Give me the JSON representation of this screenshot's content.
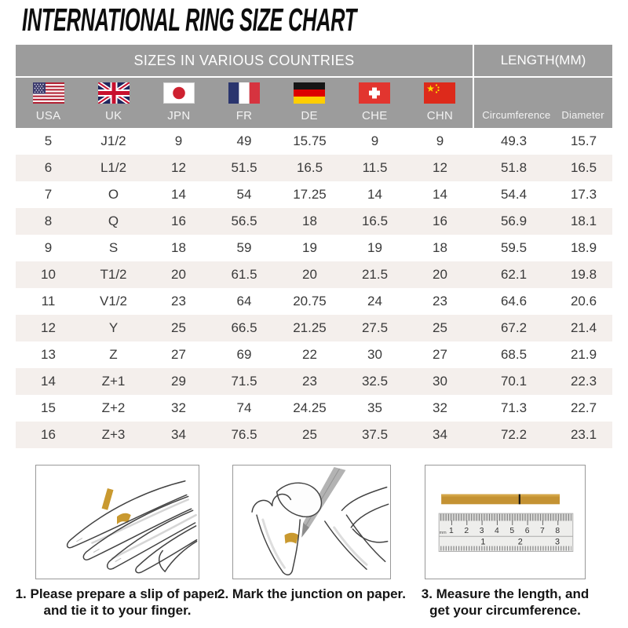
{
  "title": "INTERNATIONAL RING SIZE CHART",
  "table": {
    "group_headers": [
      {
        "label": "SIZES IN VARIOUS COUNTRIES"
      },
      {
        "label": "LENGTH(MM)"
      }
    ],
    "columns": [
      {
        "code": "USA",
        "flag": "usa-flag"
      },
      {
        "code": "UK",
        "flag": "uk-flag"
      },
      {
        "code": "JPN",
        "flag": "japan-flag"
      },
      {
        "code": "FR",
        "flag": "france-flag"
      },
      {
        "code": "DE",
        "flag": "germany-flag"
      },
      {
        "code": "CHE",
        "flag": "switzerland-flag"
      },
      {
        "code": "CHN",
        "flag": "china-flag"
      }
    ],
    "length_columns": [
      "Circumference",
      "Diameter"
    ],
    "rows": [
      [
        "5",
        "J1/2",
        "9",
        "49",
        "15.75",
        "9",
        "9",
        "49.3",
        "15.7"
      ],
      [
        "6",
        "L1/2",
        "12",
        "51.5",
        "16.5",
        "11.5",
        "12",
        "51.8",
        "16.5"
      ],
      [
        "7",
        "O",
        "14",
        "54",
        "17.25",
        "14",
        "14",
        "54.4",
        "17.3"
      ],
      [
        "8",
        "Q",
        "16",
        "56.5",
        "18",
        "16.5",
        "16",
        "56.9",
        "18.1"
      ],
      [
        "9",
        "S",
        "18",
        "59",
        "19",
        "19",
        "18",
        "59.5",
        "18.9"
      ],
      [
        "10",
        "T1/2",
        "20",
        "61.5",
        "20",
        "21.5",
        "20",
        "62.1",
        "19.8"
      ],
      [
        "11",
        "V1/2",
        "23",
        "64",
        "20.75",
        "24",
        "23",
        "64.6",
        "20.6"
      ],
      [
        "12",
        "Y",
        "25",
        "66.5",
        "21.25",
        "27.5",
        "25",
        "67.2",
        "21.4"
      ],
      [
        "13",
        "Z",
        "27",
        "69",
        "22",
        "30",
        "27",
        "68.5",
        "21.9"
      ],
      [
        "14",
        "Z+1",
        "29",
        "71.5",
        "23",
        "32.5",
        "30",
        "70.1",
        "22.3"
      ],
      [
        "15",
        "Z+2",
        "32",
        "74",
        "24.25",
        "35",
        "32",
        "71.3",
        "22.7"
      ],
      [
        "16",
        "Z+3",
        "34",
        "76.5",
        "25",
        "37.5",
        "34",
        "72.2",
        "23.1"
      ]
    ]
  },
  "instructions": [
    {
      "line1": "1. Please prepare a slip of paper",
      "line2": "and tie it to your finger."
    },
    {
      "line1": "2. Mark the junction on paper.",
      "line2": ""
    },
    {
      "line1": "3. Measure the length, and",
      "line2": "get your circumference."
    }
  ],
  "ruler": {
    "unit": "mm",
    "cm": [
      "1",
      "2",
      "3",
      "4",
      "5",
      "6",
      "7",
      "8"
    ],
    "inch": [
      "1",
      "2",
      "3"
    ]
  },
  "colors": {
    "header_gray": "#9c9c9c",
    "row_alt": "#f4efec",
    "paper_gold": "#c9992f",
    "table_text": "#3a3a3a",
    "title_black": "#0d0d0d"
  }
}
